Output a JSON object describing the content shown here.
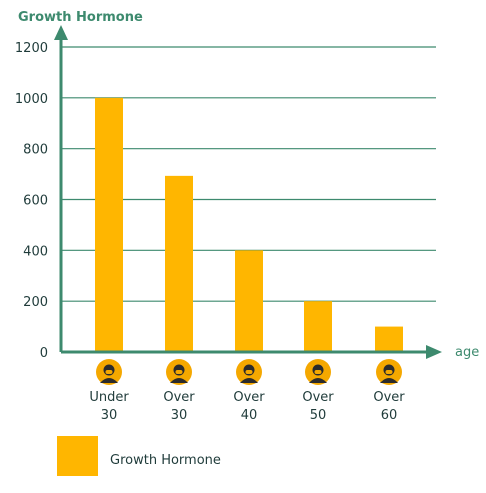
{
  "chart_data": {
    "type": "bar",
    "ylabel": "Growth Hormone",
    "xlabel": "age",
    "ylim": [
      0,
      1200
    ],
    "yticks": [
      0,
      200,
      400,
      600,
      800,
      1000,
      1200
    ],
    "grid": true,
    "categories": [
      "Under 30",
      "Over 30",
      "Over 40",
      "Over 50",
      "Over 60"
    ],
    "category_lines": [
      [
        "Under",
        "30"
      ],
      [
        "Over",
        "30"
      ],
      [
        "Over",
        "40"
      ],
      [
        "Over",
        "50"
      ],
      [
        "Over",
        "60"
      ]
    ],
    "series": [
      {
        "name": "Growth Hormone",
        "values": [
          1000,
          693,
          400,
          200,
          100
        ]
      }
    ],
    "legend_position": "bottom-left"
  },
  "colors": {
    "axis": "#3d8a6e",
    "grid": "#3d8a6e",
    "bar": "#ffb600",
    "icon_bg": "#f5a800",
    "icon_face": "#2b2b2b",
    "text": "#1f3b3a",
    "title": "#3d8a6e"
  },
  "icons": [
    "person-under-30-icon",
    "person-over-30-icon",
    "person-over-40-icon",
    "person-over-50-icon",
    "person-over-60-icon"
  ]
}
